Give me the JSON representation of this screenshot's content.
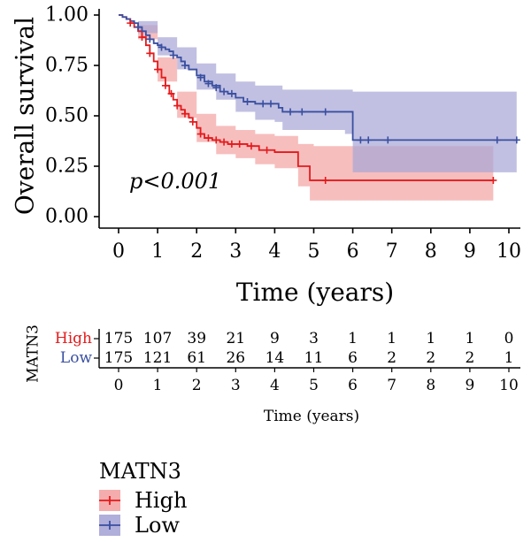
{
  "chart_data": {
    "type": "line",
    "subtype": "kaplan-meier",
    "xlabel": "Time (years)",
    "ylabel": "Overall survival",
    "xlim": [
      0,
      10
    ],
    "ylim": [
      0,
      1
    ],
    "xticks": [
      0,
      1,
      2,
      3,
      4,
      5,
      6,
      7,
      8,
      9,
      10
    ],
    "yticks": [
      "0.00",
      "0.25",
      "0.50",
      "0.75",
      "1.00"
    ],
    "annotation": "p<0.001",
    "grid": false,
    "series": [
      {
        "name": "High",
        "color": "#e41a1c",
        "band_color": "#f4a3a3",
        "steps": [
          [
            0,
            1.0
          ],
          [
            0.1,
            0.99
          ],
          [
            0.2,
            0.98
          ],
          [
            0.3,
            0.96
          ],
          [
            0.4,
            0.94
          ],
          [
            0.5,
            0.92
          ],
          [
            0.6,
            0.89
          ],
          [
            0.7,
            0.85
          ],
          [
            0.8,
            0.81
          ],
          [
            0.9,
            0.77
          ],
          [
            1.0,
            0.73
          ],
          [
            1.1,
            0.69
          ],
          [
            1.2,
            0.65
          ],
          [
            1.3,
            0.61
          ],
          [
            1.4,
            0.58
          ],
          [
            1.5,
            0.55
          ],
          [
            1.6,
            0.53
          ],
          [
            1.7,
            0.51
          ],
          [
            1.8,
            0.49
          ],
          [
            1.9,
            0.47
          ],
          [
            2.0,
            0.44
          ],
          [
            2.1,
            0.41
          ],
          [
            2.2,
            0.39
          ],
          [
            2.4,
            0.38
          ],
          [
            2.6,
            0.37
          ],
          [
            2.8,
            0.36
          ],
          [
            3.0,
            0.36
          ],
          [
            3.3,
            0.35
          ],
          [
            3.6,
            0.33
          ],
          [
            4.0,
            0.32
          ],
          [
            4.5,
            0.32
          ],
          [
            4.6,
            0.25
          ],
          [
            4.8,
            0.25
          ],
          [
            4.9,
            0.18
          ],
          [
            9.6,
            0.18
          ]
        ],
        "upper": [
          [
            0,
            1.0
          ],
          [
            0.5,
            0.95
          ],
          [
            1.0,
            0.79
          ],
          [
            1.5,
            0.62
          ],
          [
            2.0,
            0.51
          ],
          [
            2.5,
            0.45
          ],
          [
            3.0,
            0.43
          ],
          [
            3.5,
            0.41
          ],
          [
            4.0,
            0.4
          ],
          [
            4.5,
            0.4
          ],
          [
            4.6,
            0.36
          ],
          [
            4.9,
            0.36
          ],
          [
            5.0,
            0.35
          ],
          [
            9.6,
            0.35
          ]
        ],
        "lower": [
          [
            0,
            1.0
          ],
          [
            0.5,
            0.88
          ],
          [
            1.0,
            0.67
          ],
          [
            1.5,
            0.49
          ],
          [
            2.0,
            0.37
          ],
          [
            2.5,
            0.31
          ],
          [
            3.0,
            0.29
          ],
          [
            3.5,
            0.26
          ],
          [
            4.0,
            0.24
          ],
          [
            4.5,
            0.24
          ],
          [
            4.6,
            0.15
          ],
          [
            4.9,
            0.08
          ],
          [
            9.6,
            0.08
          ]
        ],
        "censors": [
          [
            0.3,
            0.96
          ],
          [
            0.6,
            0.89
          ],
          [
            0.8,
            0.81
          ],
          [
            1.0,
            0.73
          ],
          [
            1.2,
            0.65
          ],
          [
            1.35,
            0.61
          ],
          [
            1.5,
            0.55
          ],
          [
            1.7,
            0.51
          ],
          [
            1.9,
            0.47
          ],
          [
            2.1,
            0.41
          ],
          [
            2.3,
            0.39
          ],
          [
            2.5,
            0.38
          ],
          [
            2.7,
            0.37
          ],
          [
            2.9,
            0.36
          ],
          [
            3.1,
            0.36
          ],
          [
            3.4,
            0.35
          ],
          [
            3.8,
            0.33
          ],
          [
            5.3,
            0.18
          ],
          [
            9.6,
            0.18
          ]
        ]
      },
      {
        "name": "Low",
        "color": "#3a4fa0",
        "band_color": "#a7a5d6",
        "steps": [
          [
            0,
            1.0
          ],
          [
            0.1,
            0.99
          ],
          [
            0.2,
            0.98
          ],
          [
            0.3,
            0.97
          ],
          [
            0.4,
            0.96
          ],
          [
            0.5,
            0.94
          ],
          [
            0.6,
            0.92
          ],
          [
            0.7,
            0.9
          ],
          [
            0.8,
            0.88
          ],
          [
            0.9,
            0.86
          ],
          [
            1.0,
            0.85
          ],
          [
            1.1,
            0.84
          ],
          [
            1.2,
            0.83
          ],
          [
            1.3,
            0.82
          ],
          [
            1.4,
            0.8
          ],
          [
            1.5,
            0.79
          ],
          [
            1.6,
            0.77
          ],
          [
            1.7,
            0.75
          ],
          [
            1.8,
            0.73
          ],
          [
            2.0,
            0.7
          ],
          [
            2.2,
            0.67
          ],
          [
            2.4,
            0.65
          ],
          [
            2.6,
            0.62
          ],
          [
            2.8,
            0.61
          ],
          [
            3.0,
            0.59
          ],
          [
            3.2,
            0.57
          ],
          [
            3.5,
            0.56
          ],
          [
            4.0,
            0.56
          ],
          [
            4.1,
            0.54
          ],
          [
            4.2,
            0.52
          ],
          [
            5.0,
            0.52
          ],
          [
            5.8,
            0.52
          ],
          [
            6.0,
            0.38
          ],
          [
            10.2,
            0.38
          ]
        ],
        "upper": [
          [
            0,
            1.0
          ],
          [
            0.5,
            0.97
          ],
          [
            1.0,
            0.89
          ],
          [
            1.5,
            0.84
          ],
          [
            2.0,
            0.76
          ],
          [
            2.5,
            0.71
          ],
          [
            3.0,
            0.67
          ],
          [
            3.5,
            0.65
          ],
          [
            4.0,
            0.65
          ],
          [
            4.2,
            0.63
          ],
          [
            5.0,
            0.63
          ],
          [
            6.0,
            0.62
          ],
          [
            10.2,
            0.62
          ]
        ],
        "lower": [
          [
            0,
            1.0
          ],
          [
            0.5,
            0.91
          ],
          [
            1.0,
            0.8
          ],
          [
            1.5,
            0.73
          ],
          [
            2.0,
            0.63
          ],
          [
            2.5,
            0.58
          ],
          [
            3.0,
            0.52
          ],
          [
            3.5,
            0.48
          ],
          [
            4.0,
            0.47
          ],
          [
            4.2,
            0.43
          ],
          [
            5.0,
            0.43
          ],
          [
            5.8,
            0.41
          ],
          [
            6.0,
            0.22
          ],
          [
            10.2,
            0.22
          ]
        ],
        "censors": [
          [
            0.5,
            0.94
          ],
          [
            0.8,
            0.88
          ],
          [
            1.1,
            0.84
          ],
          [
            1.4,
            0.8
          ],
          [
            1.7,
            0.75
          ],
          [
            2.1,
            0.69
          ],
          [
            2.3,
            0.66
          ],
          [
            2.5,
            0.64
          ],
          [
            2.7,
            0.62
          ],
          [
            2.9,
            0.61
          ],
          [
            3.3,
            0.57
          ],
          [
            3.7,
            0.56
          ],
          [
            3.9,
            0.56
          ],
          [
            4.4,
            0.52
          ],
          [
            4.7,
            0.52
          ],
          [
            5.3,
            0.52
          ],
          [
            6.2,
            0.38
          ],
          [
            6.4,
            0.38
          ],
          [
            6.9,
            0.38
          ],
          [
            9.7,
            0.38
          ],
          [
            10.2,
            0.38
          ]
        ]
      }
    ]
  },
  "risk_table": {
    "title": "MATN3",
    "xlabel": "Time (years)",
    "times": [
      0,
      1,
      2,
      3,
      4,
      5,
      6,
      7,
      8,
      9,
      10
    ],
    "rows": [
      {
        "label": "High",
        "color": "#e41a1c",
        "counts": [
          175,
          107,
          39,
          21,
          9,
          3,
          1,
          1,
          1,
          1,
          0
        ]
      },
      {
        "label": "Low",
        "color": "#3a4fa0",
        "counts": [
          175,
          121,
          61,
          26,
          14,
          11,
          6,
          2,
          2,
          2,
          1
        ]
      }
    ]
  },
  "legend": {
    "title": "MATN3",
    "items": [
      {
        "label": "High",
        "color": "#e41a1c",
        "band_color": "#f4a3a3"
      },
      {
        "label": "Low",
        "color": "#3a4fa0",
        "band_color": "#a7a5d6"
      }
    ]
  }
}
